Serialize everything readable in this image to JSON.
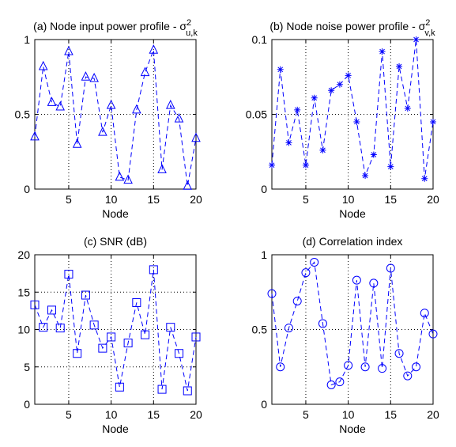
{
  "chart_data": [
    {
      "type": "line",
      "title": "(a) Node input power profile - σ",
      "title_symbol_sup": "2",
      "title_symbol_sub": "u,k",
      "xlabel": "Node",
      "ylabel": "",
      "xlim": [
        1,
        20
      ],
      "ylim": [
        0,
        1
      ],
      "xticks": [
        5,
        10,
        15,
        20
      ],
      "yticks": [
        0,
        0.5,
        1
      ],
      "ytick_labels": [
        "0",
        "0.5",
        "1"
      ],
      "grid": true,
      "marker": "triangle",
      "line_style": "dashed",
      "color": "#0000ff",
      "series": [
        {
          "x": [
            1,
            2,
            3,
            4,
            5,
            6,
            7,
            8,
            9,
            10,
            11,
            12,
            13,
            14,
            15,
            16,
            17,
            18,
            19,
            20
          ],
          "values": [
            0.35,
            0.82,
            0.58,
            0.55,
            0.92,
            0.3,
            0.75,
            0.74,
            0.38,
            0.56,
            0.08,
            0.06,
            0.53,
            0.78,
            0.93,
            0.13,
            0.56,
            0.47,
            0.02,
            0.34
          ]
        }
      ]
    },
    {
      "type": "line",
      "title": "(b) Node noise power profile - σ",
      "title_symbol_sup": "2",
      "title_symbol_sub": "v,k",
      "xlabel": "Node",
      "ylabel": "",
      "xlim": [
        1,
        20
      ],
      "ylim": [
        0,
        0.1
      ],
      "xticks": [
        5,
        10,
        15,
        20
      ],
      "yticks": [
        0,
        0.05,
        0.1
      ],
      "ytick_labels": [
        "0",
        "0.05",
        "0.1"
      ],
      "grid": true,
      "marker": "asterisk",
      "line_style": "dashed",
      "color": "#0000ff",
      "series": [
        {
          "x": [
            1,
            2,
            3,
            4,
            5,
            6,
            7,
            8,
            9,
            10,
            11,
            12,
            13,
            14,
            15,
            16,
            17,
            18,
            19,
            20
          ],
          "values": [
            0.016,
            0.08,
            0.031,
            0.053,
            0.016,
            0.061,
            0.026,
            0.066,
            0.07,
            0.076,
            0.045,
            0.009,
            0.023,
            0.092,
            0.015,
            0.082,
            0.054,
            0.1,
            0.007,
            0.045
          ]
        }
      ]
    },
    {
      "type": "line",
      "title": "(c) SNR (dB)",
      "xlabel": "Node",
      "ylabel": "",
      "xlim": [
        1,
        20
      ],
      "ylim": [
        0,
        20
      ],
      "xticks": [
        5,
        10,
        15,
        20
      ],
      "yticks": [
        0,
        5,
        10,
        15,
        20
      ],
      "ytick_labels": [
        "0",
        "5",
        "10",
        "15",
        "20"
      ],
      "grid": true,
      "marker": "square",
      "line_style": "dashed",
      "color": "#0000ff",
      "series": [
        {
          "x": [
            1,
            2,
            3,
            4,
            5,
            6,
            7,
            8,
            9,
            10,
            11,
            12,
            13,
            14,
            15,
            16,
            17,
            18,
            19,
            20
          ],
          "values": [
            13.3,
            10.3,
            12.6,
            10.2,
            17.4,
            6.8,
            14.6,
            10.6,
            7.5,
            9.0,
            2.3,
            8.2,
            13.6,
            9.3,
            18.0,
            2.0,
            10.3,
            6.8,
            1.8,
            9.0
          ]
        }
      ]
    },
    {
      "type": "line",
      "title": "(d) Correlation index",
      "xlabel": "Node",
      "ylabel": "",
      "xlim": [
        1,
        20
      ],
      "ylim": [
        0,
        1
      ],
      "xticks": [
        5,
        10,
        15,
        20
      ],
      "yticks": [
        0,
        0.5,
        1
      ],
      "ytick_labels": [
        "0",
        "0.5",
        "1"
      ],
      "grid": true,
      "marker": "circle",
      "line_style": "dashed",
      "color": "#0000ff",
      "series": [
        {
          "x": [
            1,
            2,
            3,
            4,
            5,
            6,
            7,
            8,
            9,
            10,
            11,
            12,
            13,
            14,
            15,
            16,
            17,
            18,
            19,
            20
          ],
          "values": [
            0.74,
            0.25,
            0.51,
            0.69,
            0.88,
            0.95,
            0.54,
            0.13,
            0.15,
            0.26,
            0.83,
            0.25,
            0.81,
            0.24,
            0.91,
            0.34,
            0.19,
            0.25,
            0.61,
            0.47
          ]
        }
      ]
    }
  ]
}
